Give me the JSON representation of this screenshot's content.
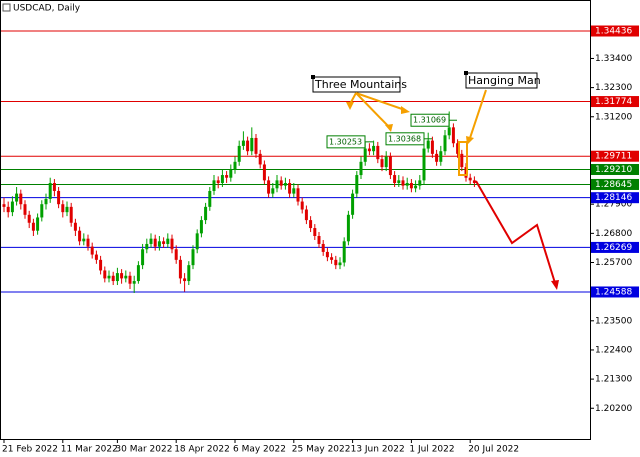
{
  "chart_data": {
    "type": "candlestick",
    "title": "USDCAD, Daily",
    "annotations": [
      "Three Mountains",
      "Hanging Man"
    ],
    "up_color": "#00a000",
    "down_color": "#e00000",
    "categories": [
      "21 Feb 2022",
      null,
      null,
      null,
      null,
      null,
      null,
      null,
      null,
      null,
      null,
      null,
      null,
      null,
      "11 Mar 2022",
      null,
      null,
      null,
      null,
      null,
      null,
      null,
      null,
      null,
      null,
      null,
      null,
      "30 Mar 2022",
      null,
      null,
      null,
      null,
      null,
      null,
      null,
      null,
      null,
      null,
      null,
      null,
      null,
      "18 Apr 2022",
      null,
      null,
      null,
      null,
      null,
      null,
      null,
      null,
      null,
      null,
      null,
      null,
      null,
      "6 May 2022",
      null,
      null,
      null,
      null,
      null,
      null,
      null,
      null,
      null,
      null,
      null,
      null,
      null,
      "25 May 2022",
      null,
      null,
      null,
      null,
      null,
      null,
      null,
      null,
      null,
      null,
      null,
      null,
      null,
      "13 Jun 2022",
      null,
      null,
      null,
      null,
      null,
      null,
      null,
      null,
      null,
      null,
      null,
      null,
      null,
      "1 Jul 2022",
      null,
      null,
      null,
      null,
      null,
      null,
      null,
      null,
      null,
      null,
      null,
      null,
      null,
      "20 Jul 2022",
      null
    ],
    "open": [
      1.279,
      1.278,
      1.276,
      1.28,
      1.283,
      1.279,
      1.275,
      1.272,
      1.269,
      1.274,
      1.279,
      1.281,
      1.287,
      1.284,
      1.279,
      1.276,
      1.278,
      1.272,
      1.269,
      1.265,
      1.266,
      1.263,
      1.26,
      1.258,
      1.254,
      1.251,
      1.252,
      1.25,
      1.253,
      1.251,
      1.252,
      1.249,
      1.25,
      1.256,
      1.262,
      1.264,
      1.266,
      1.263,
      1.265,
      1.264,
      1.266,
      1.262,
      1.258,
      1.251,
      1.25,
      1.256,
      1.262,
      1.268,
      1.273,
      1.278,
      1.284,
      1.288,
      1.287,
      1.29,
      1.289,
      1.292,
      1.295,
      1.301,
      1.303,
      1.299,
      1.304,
      1.298,
      1.294,
      1.288,
      1.283,
      1.285,
      1.288,
      1.286,
      1.287,
      1.283,
      1.285,
      1.28,
      1.277,
      1.273,
      1.27,
      1.267,
      1.264,
      1.261,
      1.259,
      1.258,
      1.256,
      1.257,
      1.265,
      1.275,
      1.283,
      1.29,
      1.295,
      1.3,
      1.299,
      1.301,
      1.296,
      1.293,
      1.297,
      1.29,
      1.287,
      1.288,
      1.286,
      1.287,
      1.285,
      1.286,
      1.288,
      1.3,
      1.303,
      1.298,
      1.295,
      1.299,
      1.305,
      1.308,
      1.302,
      1.298,
      1.293,
      1.289,
      1.288
    ],
    "high": [
      1.2815,
      1.28,
      1.282,
      1.2855,
      1.2845,
      1.2805,
      1.2765,
      1.2735,
      1.2755,
      1.2805,
      1.283,
      1.289,
      1.2885,
      1.2855,
      1.2805,
      1.28,
      1.2795,
      1.2735,
      1.2705,
      1.268,
      1.2675,
      1.2645,
      1.2615,
      1.2595,
      1.2555,
      1.254,
      1.2535,
      1.255,
      1.2545,
      1.254,
      1.2535,
      1.252,
      1.2575,
      1.264,
      1.266,
      1.268,
      1.2675,
      1.267,
      1.2665,
      1.268,
      1.2675,
      1.2635,
      1.2595,
      1.253,
      1.2575,
      1.2635,
      1.2695,
      1.2745,
      1.2795,
      1.2855,
      1.29,
      1.2895,
      1.292,
      1.2915,
      1.294,
      1.297,
      1.303,
      1.3065,
      1.3045,
      1.308,
      1.3055,
      1.2995,
      1.2955,
      1.2895,
      1.287,
      1.29,
      1.2895,
      1.289,
      1.2885,
      1.287,
      1.2865,
      1.2815,
      1.2785,
      1.2745,
      1.2715,
      1.2685,
      1.2655,
      1.2625,
      1.2605,
      1.2595,
      1.259,
      1.2665,
      1.2765,
      1.2845,
      1.2915,
      1.297,
      1.3025,
      1.302,
      1.303,
      1.3025,
      1.2975,
      1.299,
      1.2985,
      1.2915,
      1.29,
      1.2895,
      1.289,
      1.2885,
      1.288,
      1.29,
      1.3015,
      1.306,
      1.3045,
      1.2995,
      1.301,
      1.307,
      1.314,
      1.3095,
      1.3035,
      1.2995,
      1.2945,
      1.2905,
      1.2895
    ],
    "low": [
      1.276,
      1.274,
      1.2745,
      1.2785,
      1.277,
      1.2735,
      1.27,
      1.267,
      1.2675,
      1.2725,
      1.277,
      1.2795,
      1.282,
      1.2775,
      1.274,
      1.2745,
      1.2705,
      1.267,
      1.2635,
      1.2635,
      1.2615,
      1.2585,
      1.2565,
      1.2525,
      1.2495,
      1.2495,
      1.2485,
      1.2485,
      1.249,
      1.2495,
      1.247,
      1.2455,
      1.249,
      1.2545,
      1.2605,
      1.2625,
      1.2615,
      1.2615,
      1.2625,
      1.2625,
      1.2605,
      1.2565,
      1.249,
      1.246,
      1.2485,
      1.2545,
      1.2605,
      1.2665,
      1.2715,
      1.2765,
      1.2825,
      1.285,
      1.2855,
      1.287,
      1.2875,
      1.2905,
      1.2935,
      1.2995,
      1.2975,
      1.2975,
      1.2965,
      1.2925,
      1.2865,
      1.2815,
      1.2815,
      1.2835,
      1.2845,
      1.2845,
      1.2815,
      1.2815,
      1.2785,
      1.2755,
      1.2715,
      1.2685,
      1.2655,
      1.2625,
      1.2595,
      1.2575,
      1.2565,
      1.2545,
      1.2545,
      1.2555,
      1.2635,
      1.2735,
      1.2815,
      1.2885,
      1.2935,
      1.2975,
      1.2975,
      1.2945,
      1.2915,
      1.2915,
      1.2885,
      1.2855,
      1.2855,
      1.2845,
      1.2845,
      1.2835,
      1.2835,
      1.2845,
      1.2865,
      1.2985,
      1.2965,
      1.2935,
      1.2935,
      1.2975,
      1.3035,
      1.3005,
      1.2965,
      1.2915,
      1.2875,
      1.2865,
      1.2855
    ],
    "close": [
      1.278,
      1.276,
      1.28,
      1.283,
      1.279,
      1.275,
      1.272,
      1.269,
      1.274,
      1.279,
      1.281,
      1.287,
      1.284,
      1.279,
      1.276,
      1.278,
      1.272,
      1.269,
      1.265,
      1.266,
      1.263,
      1.26,
      1.258,
      1.254,
      1.251,
      1.252,
      1.25,
      1.253,
      1.251,
      1.252,
      1.249,
      1.25,
      1.256,
      1.262,
      1.264,
      1.266,
      1.263,
      1.265,
      1.264,
      1.266,
      1.262,
      1.258,
      1.251,
      1.25,
      1.256,
      1.262,
      1.268,
      1.273,
      1.278,
      1.284,
      1.288,
      1.287,
      1.29,
      1.289,
      1.292,
      1.295,
      1.301,
      1.303,
      1.299,
      1.304,
      1.298,
      1.294,
      1.288,
      1.283,
      1.285,
      1.288,
      1.286,
      1.287,
      1.283,
      1.285,
      1.28,
      1.277,
      1.273,
      1.27,
      1.267,
      1.264,
      1.261,
      1.259,
      1.258,
      1.256,
      1.257,
      1.265,
      1.275,
      1.283,
      1.29,
      1.295,
      1.3,
      1.299,
      1.301,
      1.296,
      1.293,
      1.297,
      1.29,
      1.287,
      1.288,
      1.286,
      1.287,
      1.285,
      1.286,
      1.288,
      1.3,
      1.303,
      1.298,
      1.295,
      1.299,
      1.305,
      1.308,
      1.302,
      1.298,
      1.293,
      1.289,
      1.288,
      1.287
    ],
    "ylim": [
      1.19002,
      1.35606
    ],
    "yticks": [
      {
        "value": 1.202,
        "label": "1.20200"
      },
      {
        "value": 1.213,
        "label": "1.21300"
      },
      {
        "value": 1.224,
        "label": "1.22400"
      },
      {
        "value": 1.235,
        "label": "1.23500"
      },
      {
        "value": 1.257,
        "label": "1.25700"
      },
      {
        "value": 1.268,
        "label": "1.26800"
      },
      {
        "value": 1.279,
        "label": "1.27900"
      },
      {
        "value": 1.312,
        "label": "1.31200"
      },
      {
        "value": 1.323,
        "label": "1.32300"
      },
      {
        "value": 1.334,
        "label": "1.33400"
      }
    ],
    "levels": [
      {
        "value": 1.34436,
        "label": "1.34436",
        "color": "#e00000"
      },
      {
        "value": 1.31774,
        "label": "1.31774",
        "color": "#e00000"
      },
      {
        "value": 1.29711,
        "label": "1.29711",
        "color": "#e00000"
      },
      {
        "value": 1.2921,
        "label": "1.29210",
        "color": "#008000"
      },
      {
        "value": 1.28645,
        "label": "1.28645",
        "color": "#008000"
      },
      {
        "value": 1.28146,
        "label": "1.28146",
        "color": "#0000e0"
      },
      {
        "value": 1.26269,
        "label": "1.26269",
        "color": "#0000e0"
      },
      {
        "value": 1.24588,
        "label": "1.24588",
        "color": "#0000e0"
      }
    ],
    "price_labels": [
      {
        "value": 1.30253,
        "label": "1.30253"
      },
      {
        "value": 1.30368,
        "label": "1.30368"
      },
      {
        "value": 1.31069,
        "label": "1.31069"
      }
    ]
  }
}
